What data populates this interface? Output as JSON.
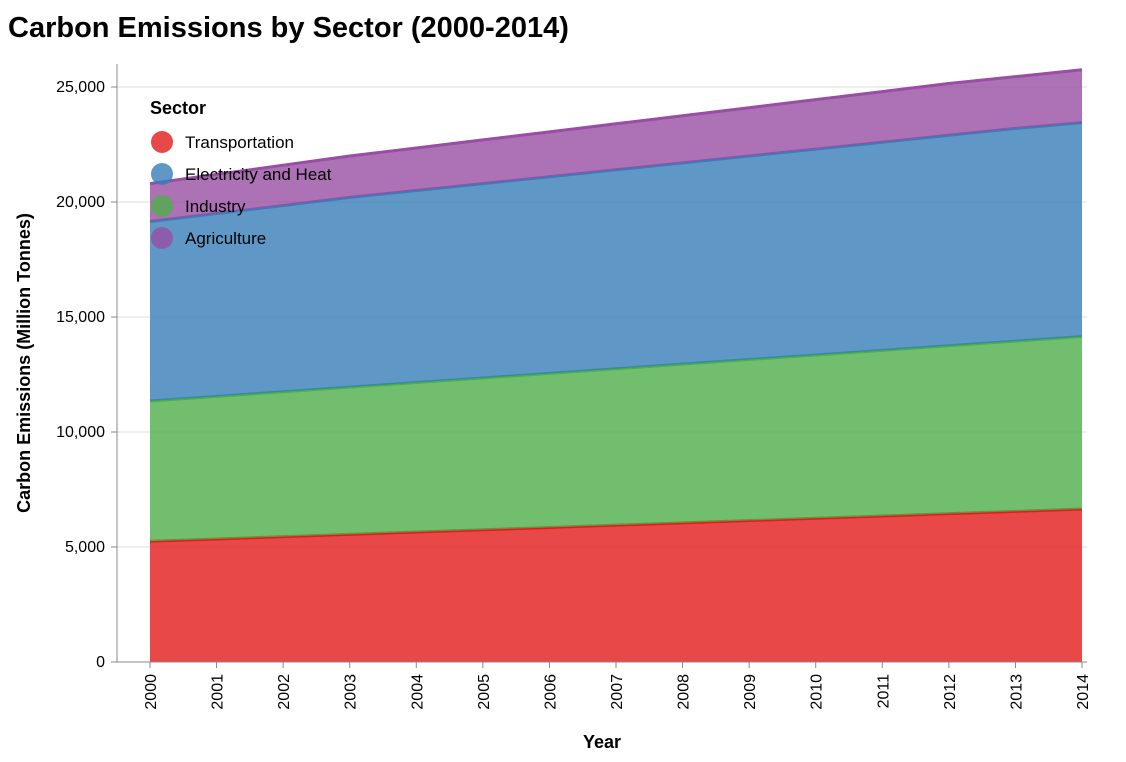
{
  "chart_data": {
    "type": "area",
    "stacked": true,
    "title": "Carbon Emissions by Sector (2000-2014)",
    "xlabel": "Year",
    "ylabel": "Carbon Emissions (Million Tonnes)",
    "x": [
      "2000",
      "2001",
      "2002",
      "2003",
      "2004",
      "2005",
      "2006",
      "2007",
      "2008",
      "2009",
      "2010",
      "2011",
      "2012",
      "2013",
      "2014"
    ],
    "ylim": [
      0,
      26000
    ],
    "yticks": [
      0,
      5000,
      10000,
      15000,
      20000,
      25000
    ],
    "ytick_labels": [
      "0",
      "5,000",
      "10,000",
      "15,000",
      "20,000",
      "25,000"
    ],
    "grid": true,
    "legend": {
      "title": "Sector",
      "position": "top-left"
    },
    "series": [
      {
        "name": "Transportation",
        "color": "#e41a1c",
        "values": [
          5250,
          5350,
          5450,
          5550,
          5650,
          5750,
          5850,
          5950,
          6050,
          6150,
          6250,
          6350,
          6450,
          6550,
          6650
        ]
      },
      {
        "name": "Industry",
        "color": "#4daf4a",
        "values": [
          6100,
          6200,
          6300,
          6400,
          6500,
          6600,
          6700,
          6800,
          6900,
          7000,
          7100,
          7200,
          7300,
          7400,
          7500
        ]
      },
      {
        "name": "Electricity and Heat",
        "color": "#377eb8",
        "values": [
          7800,
          7950,
          8100,
          8250,
          8350,
          8450,
          8550,
          8650,
          8750,
          8850,
          8950,
          9050,
          9150,
          9250,
          9300
        ]
      },
      {
        "name": "Agriculture",
        "color": "#984ea3",
        "values": [
          1650,
          1700,
          1750,
          1800,
          1850,
          1900,
          1950,
          2000,
          2050,
          2100,
          2150,
          2200,
          2250,
          2250,
          2300
        ]
      }
    ],
    "legend_order": [
      "Transportation",
      "Electricity and Heat",
      "Industry",
      "Agriculture"
    ]
  }
}
